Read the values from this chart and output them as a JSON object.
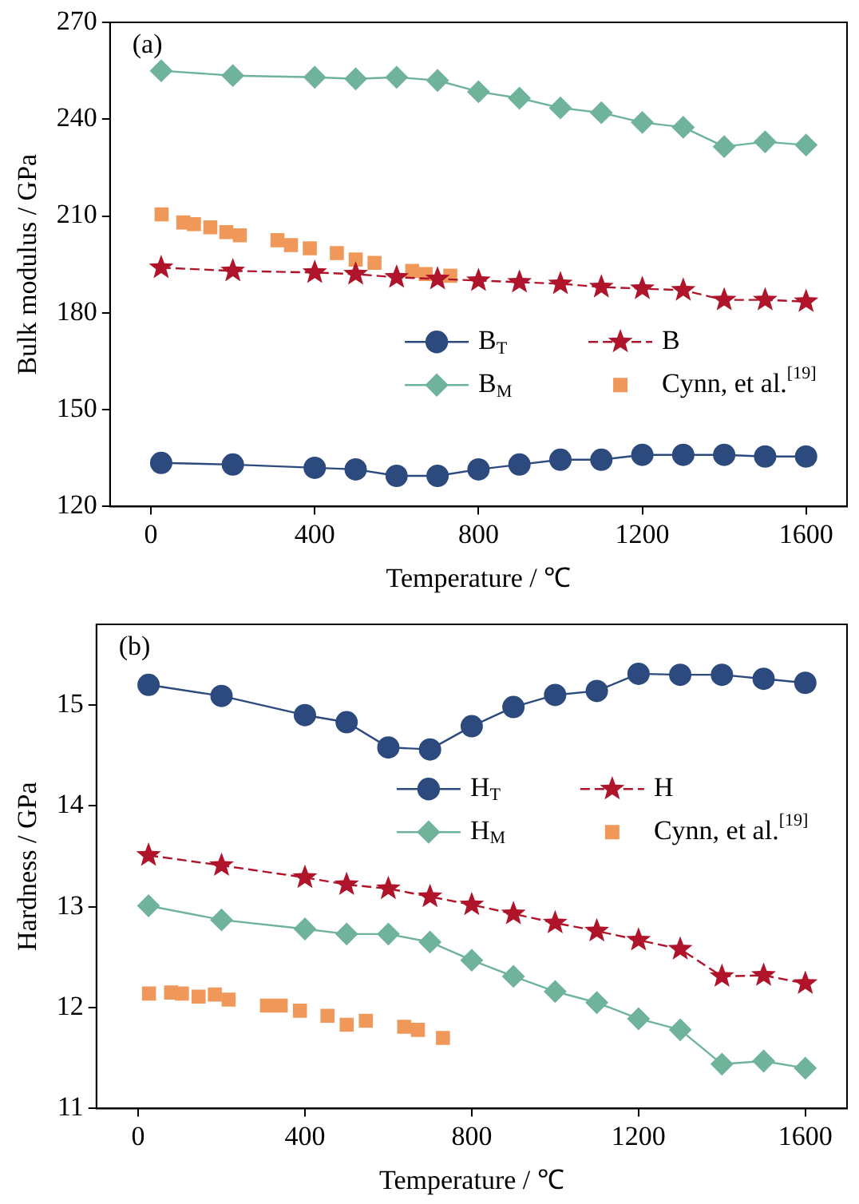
{
  "chart_data": [
    {
      "type": "line",
      "xlabel": "Temperature / ℃",
      "ylabel": "Bulk modulus / GPa",
      "annotations": [
        "(a)"
      ],
      "xlim": [
        -100,
        1700
      ],
      "xticks": [
        0,
        400,
        800,
        1200,
        1600
      ],
      "ylim": [
        120,
        270
      ],
      "yticks": [
        120,
        150,
        180,
        210,
        240,
        270
      ],
      "legend": "center right",
      "grid": false,
      "series": [
        {
          "name": "B$_{T}$",
          "color": "#2c4a7e",
          "marker": "circle",
          "line_style": "solid",
          "x": [
            25,
            200,
            400,
            500,
            600,
            700,
            800,
            900,
            1000,
            1100,
            1200,
            1300,
            1400,
            1500,
            1600
          ],
          "values": [
            133.5,
            133,
            132,
            131.5,
            129.5,
            129.5,
            131.5,
            133,
            134.5,
            134.5,
            136,
            136,
            136,
            135.5,
            135.5
          ]
        },
        {
          "name": "B",
          "color": "#b0142a",
          "marker": "star",
          "line_style": "dashed",
          "x": [
            25,
            200,
            400,
            500,
            600,
            700,
            800,
            900,
            1000,
            1100,
            1200,
            1300,
            1400,
            1500,
            1600
          ],
          "values": [
            194,
            193,
            192.5,
            192,
            191,
            190.5,
            190,
            189.5,
            189,
            188,
            187.5,
            187,
            184,
            184,
            183.5
          ]
        },
        {
          "name": "B$_{M}$",
          "color": "#6fb39b",
          "marker": "diamond",
          "line_style": "solid",
          "x": [
            25,
            200,
            400,
            500,
            600,
            700,
            800,
            900,
            1000,
            1100,
            1200,
            1300,
            1400,
            1500,
            1600
          ],
          "values": [
            255,
            253.5,
            253,
            252.5,
            253,
            252,
            248.5,
            246.5,
            243.5,
            242,
            239,
            237.5,
            231.5,
            233,
            232
          ]
        },
        {
          "name": "Cynn, et al.$^{[19]}$",
          "type": "scatter",
          "color": "#f0985a",
          "marker": "square",
          "x": [
            26,
            79,
            105,
            145,
            184,
            217,
            309,
            342,
            388,
            454,
            500,
            546,
            638,
            671,
            731
          ],
          "values": [
            210.5,
            208,
            207.5,
            206.5,
            205,
            204,
            202.5,
            201,
            200,
            198.5,
            196.5,
            195.5,
            193,
            192,
            191.5
          ]
        }
      ]
    },
    {
      "type": "line",
      "xlabel": "Temperature / ℃",
      "ylabel": "Hardness / GPa",
      "annotations": [
        "(b)"
      ],
      "xlim": [
        -100,
        1700
      ],
      "xticks": [
        0,
        400,
        800,
        1200,
        1600
      ],
      "ylim": [
        11,
        15.8
      ],
      "yticks": [
        11,
        12,
        13,
        14,
        15
      ],
      "legend": "top right",
      "grid": false,
      "series": [
        {
          "name": "H$_{T}$",
          "color": "#2c4a7e",
          "marker": "circle",
          "line_style": "solid",
          "x": [
            25,
            200,
            400,
            500,
            600,
            700,
            800,
            900,
            1000,
            1100,
            1200,
            1300,
            1400,
            1500,
            1600
          ],
          "values": [
            15.2,
            15.09,
            14.9,
            14.83,
            14.58,
            14.56,
            14.79,
            14.98,
            15.1,
            15.14,
            15.31,
            15.3,
            15.3,
            15.26,
            15.22
          ]
        },
        {
          "name": "H",
          "color": "#b0142a",
          "marker": "star",
          "line_style": "dashed",
          "x": [
            25,
            200,
            400,
            500,
            600,
            700,
            800,
            900,
            1000,
            1100,
            1200,
            1300,
            1400,
            1500,
            1600
          ],
          "values": [
            13.51,
            13.41,
            13.29,
            13.22,
            13.18,
            13.1,
            13.02,
            12.93,
            12.84,
            12.76,
            12.67,
            12.58,
            12.31,
            12.32,
            12.24
          ]
        },
        {
          "name": "H$_{M}$",
          "color": "#6fb39b",
          "marker": "diamond",
          "line_style": "solid",
          "x": [
            25,
            200,
            400,
            500,
            600,
            700,
            800,
            900,
            1000,
            1100,
            1200,
            1300,
            1400,
            1500,
            1600
          ],
          "values": [
            13.01,
            12.87,
            12.78,
            12.73,
            12.73,
            12.65,
            12.47,
            12.31,
            12.16,
            12.05,
            11.89,
            11.78,
            11.44,
            11.47,
            11.4
          ]
        },
        {
          "name": "Cynn, et al.$^{[19]}$",
          "type": "scatter",
          "color": "#f0985a",
          "marker": "square",
          "x": [
            26,
            79,
            105,
            145,
            184,
            217,
            309,
            342,
            388,
            454,
            500,
            546,
            638,
            671,
            731
          ],
          "values": [
            12.14,
            12.15,
            12.14,
            12.11,
            12.13,
            12.08,
            12.02,
            12.02,
            11.97,
            11.92,
            11.83,
            11.87,
            11.81,
            11.78,
            11.7
          ]
        }
      ]
    }
  ]
}
